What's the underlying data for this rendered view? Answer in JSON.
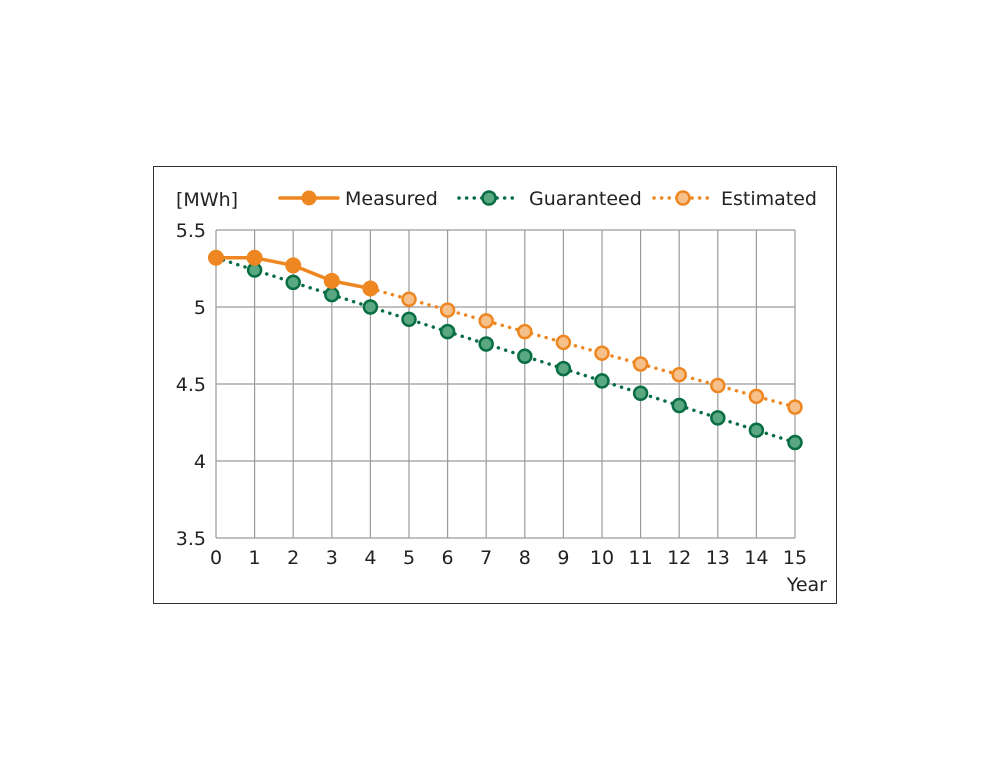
{
  "chart_data": {
    "type": "line",
    "unit_label": "[MWh]",
    "xlabel": "Year",
    "ylabel": "",
    "x": [
      0,
      1,
      2,
      3,
      4,
      5,
      6,
      7,
      8,
      9,
      10,
      11,
      12,
      13,
      14,
      15
    ],
    "xlim": [
      0,
      15
    ],
    "ylim": [
      3.5,
      5.5
    ],
    "y_ticks": [
      "3.5",
      "4",
      "4.5",
      "5",
      "5.5"
    ],
    "x_ticks": [
      "0",
      "1",
      "2",
      "3",
      "4",
      "5",
      "6",
      "7",
      "8",
      "9",
      "10",
      "11",
      "12",
      "13",
      "14",
      "15"
    ],
    "grid": true,
    "legend_position": "top",
    "series": [
      {
        "name": "Measured",
        "style": "solid",
        "marker": "filled",
        "color": "#ee8722",
        "x": [
          0,
          1,
          2,
          3,
          4
        ],
        "values": [
          5.32,
          5.32,
          5.27,
          5.17,
          5.12
        ]
      },
      {
        "name": "Guaranteed",
        "style": "dotted",
        "marker": "filled-light",
        "color": "#0a6e45",
        "fill": "#5aa882",
        "x": [
          0,
          1,
          2,
          3,
          4,
          5,
          6,
          7,
          8,
          9,
          10,
          11,
          12,
          13,
          14,
          15
        ],
        "values": [
          5.32,
          5.24,
          5.16,
          5.08,
          5.0,
          4.92,
          4.84,
          4.76,
          4.68,
          4.6,
          4.52,
          4.44,
          4.36,
          4.28,
          4.2,
          4.12
        ]
      },
      {
        "name": "Estimated",
        "style": "dotted",
        "marker": "hollow",
        "color": "#ee8722",
        "fill": "#f6c08a",
        "x": [
          4,
          5,
          6,
          7,
          8,
          9,
          10,
          11,
          12,
          13,
          14,
          15
        ],
        "values": [
          5.12,
          5.05,
          4.98,
          4.91,
          4.84,
          4.77,
          4.7,
          4.63,
          4.56,
          4.49,
          4.42,
          4.35
        ]
      }
    ]
  }
}
